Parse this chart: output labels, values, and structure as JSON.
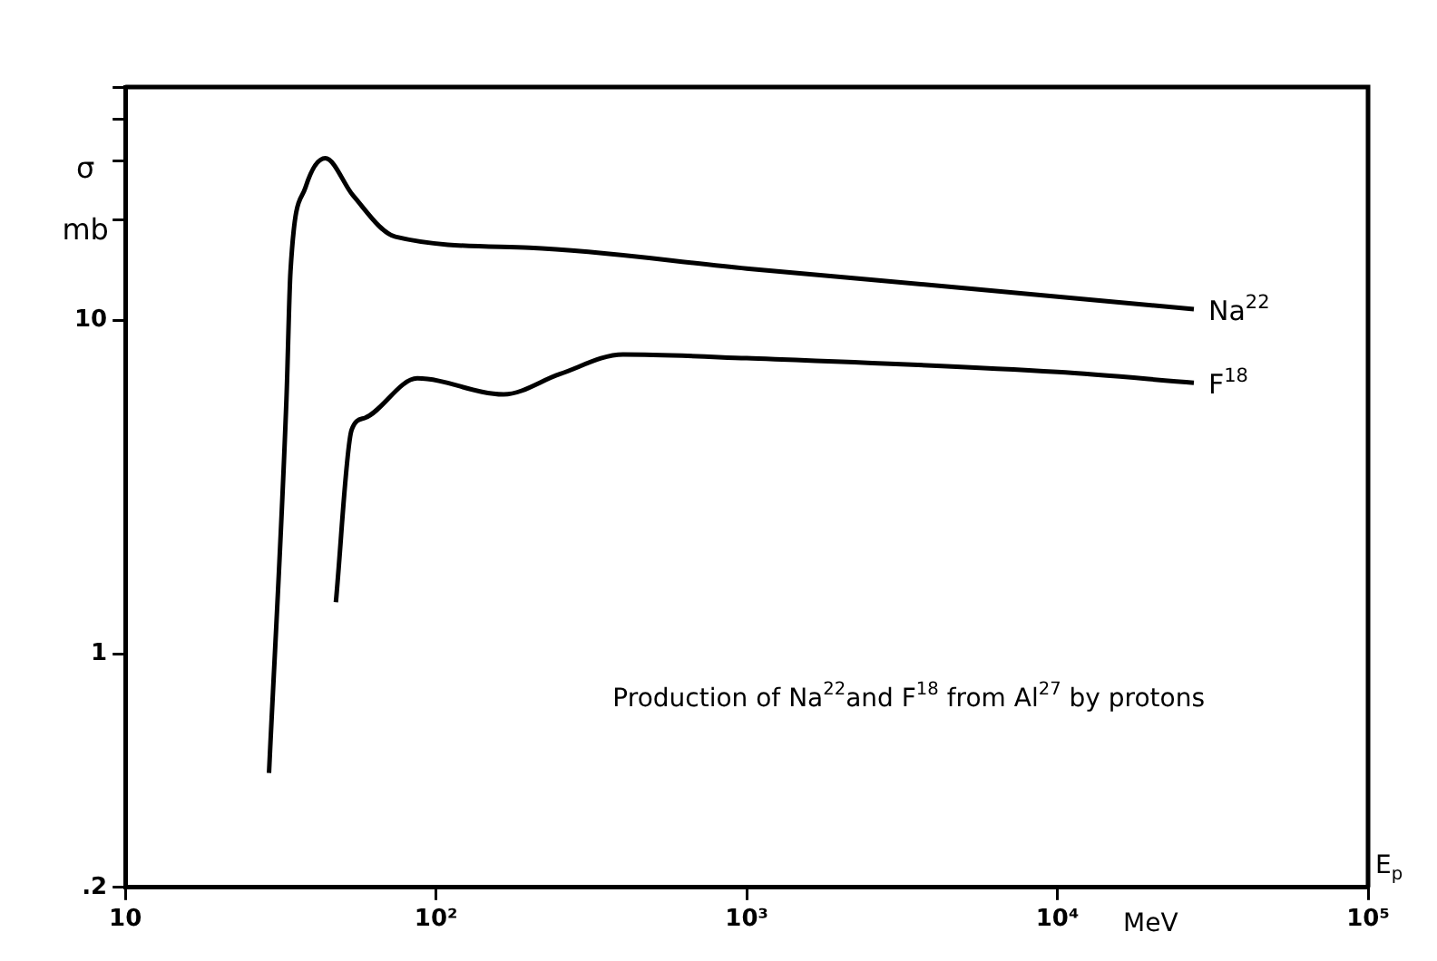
{
  "chart_data": {
    "type": "line",
    "ylabel": "σ mb",
    "xlabel": "MeV",
    "annotations": [
      "Production of Na$^{22}$and F$^{18}$ from Al$^{27}$ by protons",
      "E$_{p}$"
    ],
    "log": "xy",
    "grid": false,
    "legend": false,
    "marker": "none",
    "line_style": "solid",
    "xlim": [
      10,
      100000
    ],
    "xticks": [
      10,
      {
        "value": 100,
        "label": "10²"
      },
      {
        "value": 1000,
        "label": "10³"
      },
      {
        "value": 10000,
        "label": "10⁴"
      },
      {
        "value": 100000,
        "label": "10⁵"
      }
    ],
    "ylim": [
      0.2,
      50
    ],
    "yticks": [
      {
        "value": 0.2,
        "label": ".2"
      },
      1,
      10,
      {
        "value": 20,
        "label": null
      },
      {
        "value": 30,
        "label": null
      },
      {
        "value": 40,
        "label": null
      },
      {
        "value": 50,
        "label": null
      }
    ],
    "series": [
      {
        "name": "Na$^{22}$",
        "color": "#000000",
        "x": [
          29,
          33,
          34,
          38,
          44,
          54,
          74,
          200,
          1000,
          5000,
          27500
        ],
        "values": [
          0.44,
          5.8,
          14,
          25,
          30.6,
          23.7,
          17.8,
          16.5,
          14.3,
          12.5,
          10.8
        ]
      },
      {
        "name": "F$^{18}$",
        "color": "#000000",
        "x": [
          47.6,
          53.5,
          59,
          87,
          165,
          250,
          400,
          1000,
          10000,
          27500
        ],
        "values": [
          1.43,
          4.7,
          5.1,
          6.7,
          6.0,
          6.9,
          7.9,
          7.7,
          7.0,
          6.5
        ]
      }
    ]
  }
}
